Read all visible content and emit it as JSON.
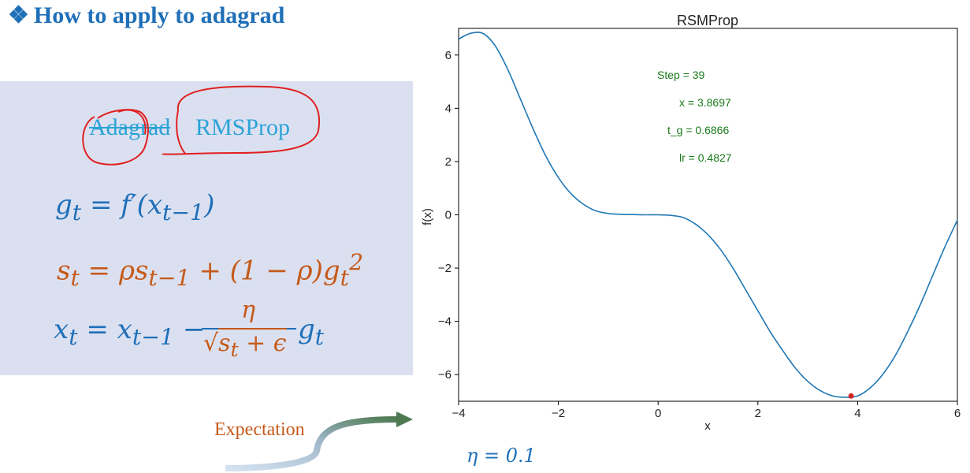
{
  "heading": {
    "bullet": "❖",
    "text": "How to apply to adagrad"
  },
  "box": {
    "old_name": "Adagrad",
    "new_name": "RMSProp",
    "eq1": "g_t = f′(x_{t−1})",
    "eq2": "s_t = ρ s_{t−1} + (1 − ρ) g_t^2",
    "eq3": "x_t = x_{t−1} − η / √(s_t + ϵ) · g_t"
  },
  "expectation_label": "Expectation",
  "eta_label": "η = 0.1",
  "colors": {
    "heading": "#1f6fb8",
    "curve": "#1f77b4",
    "annotation": "#1a7a1a",
    "marker": "#d62728",
    "ink": "#e02020"
  },
  "chart_data": {
    "type": "line",
    "title": "RSMProp",
    "xlabel": "x",
    "ylabel": "f(x)",
    "xlim": [
      -4,
      6
    ],
    "ylim": [
      -7,
      7
    ],
    "xticks": [
      -4,
      -2,
      0,
      2,
      4,
      6
    ],
    "yticks": [
      -6,
      -4,
      -2,
      0,
      2,
      4,
      6
    ],
    "xtick_labels": [
      "−4",
      "−2",
      "0",
      "2",
      "4",
      "6"
    ],
    "ytick_labels": [
      "−6",
      "−4",
      "−2",
      "0",
      "2",
      "4",
      "6"
    ],
    "grid": false,
    "series": [
      {
        "x": [
          -4.0,
          -3.75,
          -3.5,
          -3.25,
          -3.0,
          -2.75,
          -2.5,
          -2.25,
          -2.0,
          -1.75,
          -1.5,
          -1.25,
          -1.0,
          -0.75,
          -0.5,
          -0.25,
          0.0,
          0.25,
          0.5,
          0.75,
          1.0,
          1.25,
          1.5,
          1.75,
          2.0,
          2.25,
          2.5,
          2.75,
          3.0,
          3.25,
          3.5,
          3.75,
          4.0,
          4.25,
          4.5,
          4.75,
          5.0,
          5.25,
          5.5,
          5.75,
          6.0
        ],
        "y": [
          6.6,
          6.82,
          6.8,
          6.3,
          5.4,
          4.3,
          3.2,
          2.2,
          1.4,
          0.8,
          0.4,
          0.15,
          0.05,
          0.02,
          0.01,
          0.0,
          0.0,
          -0.02,
          -0.1,
          -0.35,
          -0.75,
          -1.3,
          -2.0,
          -2.8,
          -3.6,
          -4.4,
          -5.1,
          -5.75,
          -6.25,
          -6.6,
          -6.8,
          -6.85,
          -6.8,
          -6.5,
          -6.0,
          -5.3,
          -4.4,
          -3.4,
          -2.3,
          -1.2,
          -0.2
        ]
      }
    ],
    "marker_point": {
      "x": 3.8697,
      "y": -6.8
    },
    "annotations": [
      "Step = 39",
      "x = 3.8697",
      "t_g = 0.6866",
      "lr = 0.4827"
    ]
  }
}
